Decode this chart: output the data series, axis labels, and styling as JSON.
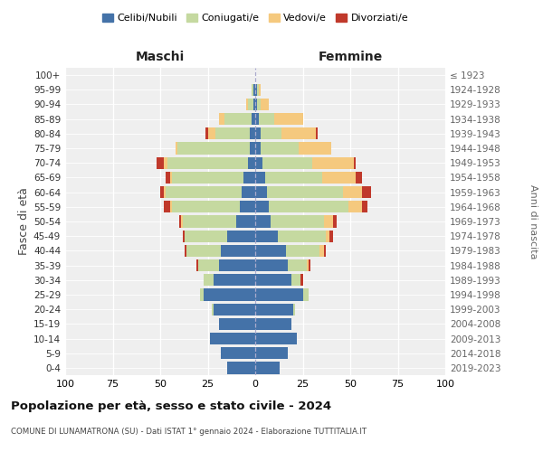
{
  "age_groups": [
    "0-4",
    "5-9",
    "10-14",
    "15-19",
    "20-24",
    "25-29",
    "30-34",
    "35-39",
    "40-44",
    "45-49",
    "50-54",
    "55-59",
    "60-64",
    "65-69",
    "70-74",
    "75-79",
    "80-84",
    "85-89",
    "90-94",
    "95-99",
    "100+"
  ],
  "birth_years": [
    "2019-2023",
    "2014-2018",
    "2009-2013",
    "2004-2008",
    "1999-2003",
    "1994-1998",
    "1989-1993",
    "1984-1988",
    "1979-1983",
    "1974-1978",
    "1969-1973",
    "1964-1968",
    "1959-1963",
    "1954-1958",
    "1949-1953",
    "1944-1948",
    "1939-1943",
    "1934-1938",
    "1929-1933",
    "1924-1928",
    "≤ 1923"
  ],
  "maschi": {
    "celibi": [
      15,
      18,
      24,
      19,
      22,
      27,
      22,
      19,
      18,
      15,
      10,
      8,
      7,
      6,
      4,
      3,
      3,
      2,
      1,
      1,
      0
    ],
    "coniugati": [
      0,
      0,
      0,
      0,
      1,
      2,
      5,
      11,
      18,
      22,
      28,
      36,
      40,
      38,
      42,
      38,
      18,
      14,
      3,
      1,
      0
    ],
    "vedovi": [
      0,
      0,
      0,
      0,
      0,
      0,
      0,
      0,
      0,
      0,
      1,
      1,
      1,
      1,
      2,
      1,
      4,
      3,
      1,
      0,
      0
    ],
    "divorziati": [
      0,
      0,
      0,
      0,
      0,
      0,
      0,
      1,
      1,
      1,
      1,
      3,
      2,
      2,
      4,
      0,
      1,
      0,
      0,
      0,
      0
    ]
  },
  "femmine": {
    "nubili": [
      13,
      17,
      22,
      19,
      20,
      25,
      19,
      17,
      16,
      12,
      8,
      7,
      6,
      5,
      4,
      3,
      3,
      2,
      1,
      1,
      0
    ],
    "coniugate": [
      0,
      0,
      0,
      0,
      1,
      3,
      5,
      10,
      18,
      25,
      28,
      42,
      40,
      30,
      26,
      20,
      11,
      8,
      2,
      1,
      0
    ],
    "vedove": [
      0,
      0,
      0,
      0,
      0,
      0,
      0,
      1,
      2,
      2,
      5,
      7,
      10,
      18,
      22,
      17,
      18,
      15,
      4,
      1,
      0
    ],
    "divorziate": [
      0,
      0,
      0,
      0,
      0,
      0,
      1,
      1,
      1,
      2,
      2,
      3,
      5,
      3,
      1,
      0,
      1,
      0,
      0,
      0,
      0
    ]
  },
  "colors": {
    "celibi": "#4472a8",
    "coniugati": "#c5d9a0",
    "vedovi": "#f5c97e",
    "divorziati": "#c0392b"
  },
  "title": "Popolazione per età, sesso e stato civile - 2024",
  "subtitle": "COMUNE DI LUNAMATRONA (SU) - Dati ISTAT 1° gennaio 2024 - Elaborazione TUTTITALIA.IT",
  "xlabel_left": "Maschi",
  "xlabel_right": "Femmine",
  "ylabel_left": "Fasce di età",
  "ylabel_right": "Anni di nascita",
  "xlim": 100,
  "legend_labels": [
    "Celibi/Nubili",
    "Coniugati/e",
    "Vedovi/e",
    "Divorziati/e"
  ],
  "background_color": "#ffffff",
  "plot_bg": "#efefef"
}
